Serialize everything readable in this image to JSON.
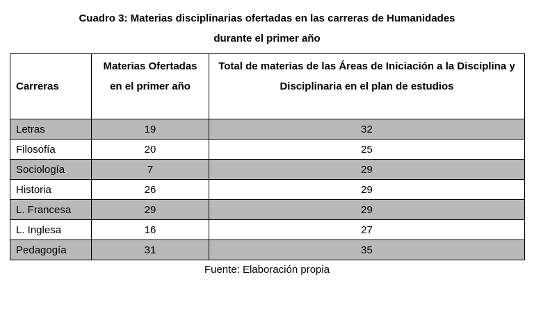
{
  "title": {
    "line1": "Cuadro 3: Materias disciplinarias ofertadas en las carreras de Humanidades",
    "line2": "durante el primer año"
  },
  "table": {
    "headers": {
      "carreras": "Carreras",
      "ofertadas": "Materias Ofertadas en el primer año",
      "total": "Total de materias de las Áreas de Iniciación a la Disciplina y Disciplinaria en el plan de estudios"
    },
    "rows": [
      {
        "carrera": "Letras",
        "ofertadas": "19",
        "total": "32"
      },
      {
        "carrera": "Filosofía",
        "ofertadas": "20",
        "total": "25"
      },
      {
        "carrera": "Sociología",
        "ofertadas": "7",
        "total": "29"
      },
      {
        "carrera": "Historia",
        "ofertadas": "26",
        "total": "29"
      },
      {
        "carrera": "L. Francesa",
        "ofertadas": "29",
        "total": "29"
      },
      {
        "carrera": "L. Inglesa",
        "ofertadas": "16",
        "total": "27"
      },
      {
        "carrera": "Pedagogía",
        "ofertadas": "31",
        "total": "35"
      }
    ]
  },
  "colors": {
    "row_shade": "#b9b9b9",
    "row_plain": "#ffffff",
    "border": "#000000"
  },
  "footer": "Fuente: Elaboración propia"
}
